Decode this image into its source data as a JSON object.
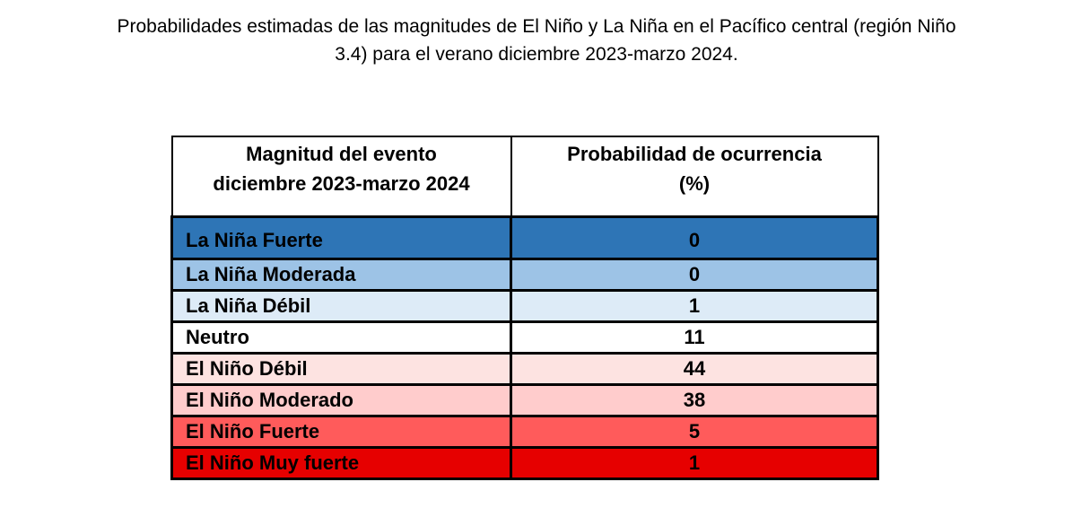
{
  "title": {
    "line1": "Probabilidades estimadas de las magnitudes de El Niño y La Niña en el Pacífico central (región Niño",
    "line2": "3.4) para el verano diciembre 2023-marzo 2024."
  },
  "table": {
    "headers": [
      "Magnitud del evento diciembre 2023-marzo 2024",
      "Probabilidad de ocurrencia (%)"
    ],
    "header_lines": [
      [
        "Magnitud del evento",
        "diciembre 2023-marzo 2024"
      ],
      [
        "Probabilidad de ocurrencia",
        "(%)"
      ]
    ],
    "rows": [
      {
        "label": "La Niña Fuerte",
        "value": "0",
        "color": "#2E75B6"
      },
      {
        "label": "La Niña Moderada",
        "value": "0",
        "color": "#9DC3E6"
      },
      {
        "label": "La Niña Débil",
        "value": "1",
        "color": "#DDEBF7"
      },
      {
        "label": "Neutro",
        "value": "11",
        "color": "#FFFFFF"
      },
      {
        "label": "El Niño Débil",
        "value": "44",
        "color": "#FDE3E1"
      },
      {
        "label": "El Niño Moderado",
        "value": "38",
        "color": "#FFCCCC"
      },
      {
        "label": "El Niño Fuerte",
        "value": "5",
        "color": "#FF5B5B"
      },
      {
        "label": "El Niño Muy fuerte",
        "value": "1",
        "color": "#E60000"
      }
    ]
  }
}
